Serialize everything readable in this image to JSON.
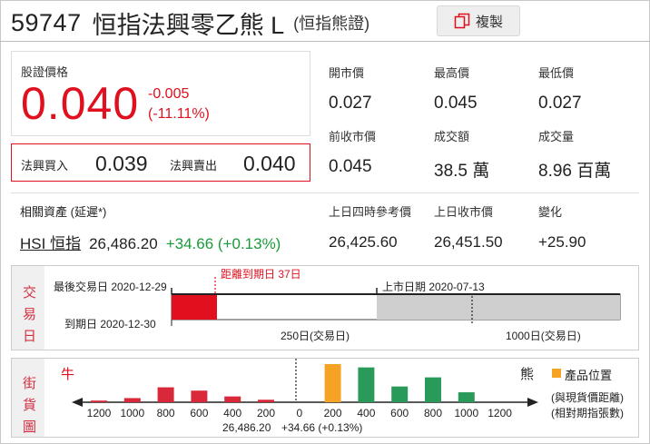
{
  "header": {
    "code": "59747",
    "name": "恒指法興零乙熊 L",
    "subtitle": "(恒指熊證)",
    "copy_label": "複製"
  },
  "price": {
    "label": "股證價格",
    "value": "0.040",
    "change": "-0.005",
    "change_pct": "(-11.11%)"
  },
  "bidask": {
    "bid_label": "法興買入",
    "bid_value": "0.039",
    "ask_label": "法興賣出",
    "ask_value": "0.040"
  },
  "stats": {
    "open_label": "開市價",
    "open": "0.027",
    "high_label": "最高價",
    "high": "0.045",
    "low_label": "最低價",
    "low": "0.027",
    "prev_close_label": "前收市價",
    "prev_close": "0.045",
    "turnover_label": "成交額",
    "turnover": "38.5 萬",
    "volume_label": "成交量",
    "volume": "8.96 百萬"
  },
  "related": {
    "label": "相關資產 (延遲*)",
    "asset": "HSI 恒指",
    "price": "26,486.20",
    "change": "+34.66 (+0.13%)",
    "ref_label": "上日四時參考價",
    "ref": "26,425.60",
    "close_label": "上日收市價",
    "close": "26,451.50",
    "chg_label": "變化",
    "chg": "+25.90"
  },
  "trade_days": {
    "title_chars": [
      "交",
      "易",
      "日"
    ],
    "last_trade": "最後交易日 2020-12-29",
    "days_to_expiry": "距離到期日 37日",
    "listing": "上市日期 2020-07-13",
    "expiry": "到期日 2020-12-30",
    "scale_250": "250日(交易日)",
    "scale_1000": "1000日(交易日)"
  },
  "street": {
    "title_chars": [
      "街",
      "貨",
      "圖"
    ],
    "bull_label": "牛",
    "bear_label": "熊",
    "legend_label": "產品位置",
    "note_line1": "(與現貨價距離)",
    "note_line2": "(相對期指張數)",
    "ticks": [
      "1200",
      "1000",
      "800",
      "600",
      "400",
      "200",
      "0",
      "200",
      "400",
      "600",
      "800",
      "1000",
      "1200"
    ],
    "spot": "26,486.20",
    "spot_change": "+34.66 (+0.13%)"
  },
  "chart_data": {
    "type": "bar",
    "categories": [
      "1200",
      "1000",
      "800",
      "600",
      "400",
      "200",
      "0",
      "200",
      "400",
      "600",
      "800",
      "1000",
      "1200"
    ],
    "values": [
      2,
      5,
      18,
      14,
      7,
      3,
      0,
      46,
      42,
      19,
      30,
      12,
      0
    ],
    "colors": {
      "bull": "#d8283a",
      "bear": "#2a9a5a",
      "product": "#f6a224",
      "accent_red": "#e0101f",
      "accent_green": "#1a9a3a"
    },
    "product_index": 7
  }
}
